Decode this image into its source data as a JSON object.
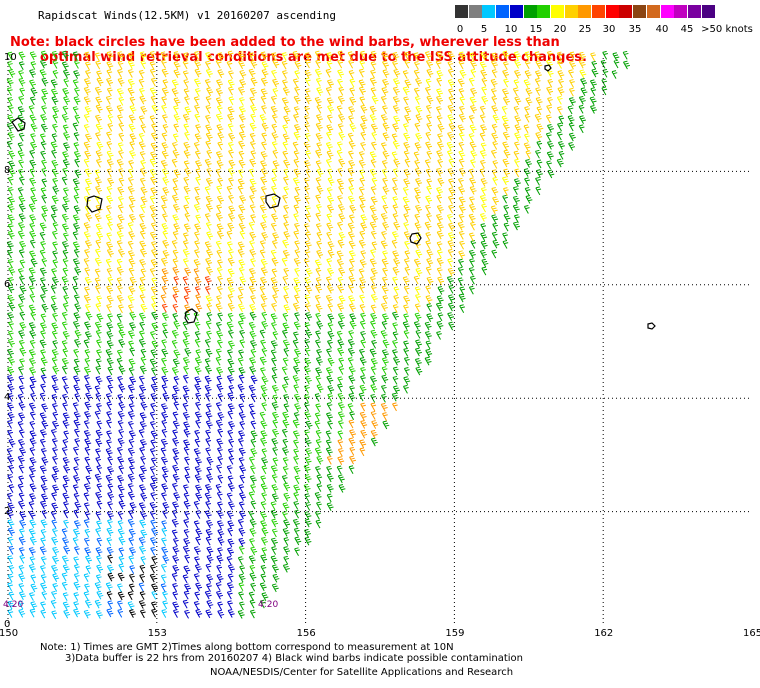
{
  "title": "Rapidscat Winds(12.5KM) v1 20160207 ascending",
  "note": {
    "line1": "Note: black circles have been added to the wind barbs, wherever less than",
    "line2": "optimal wind retrieval conditions are met due to the ISS attitude changes."
  },
  "legend": {
    "labels": [
      "0",
      "5",
      "10",
      "15",
      "20",
      "25",
      "30",
      "35",
      "40",
      "45",
      ">50 knots"
    ],
    "colors": [
      "#333333",
      "#7f7f7f",
      "#00c8ff",
      "#0064ff",
      "#0000c8",
      "#00a000",
      "#22d000",
      "#ffff00",
      "#ffd000",
      "#ff9900",
      "#ff4400",
      "#ff0000",
      "#cc0000",
      "#8b4513",
      "#d2691e",
      "#ff00ff",
      "#c000c0",
      "#7a00a0",
      "#4b0082"
    ]
  },
  "axes": {
    "x_ticks": [
      "150",
      "153",
      "156",
      "159",
      "162",
      "165"
    ],
    "y_ticks": [
      "10",
      "8",
      "6",
      "4",
      "2",
      "0"
    ]
  },
  "time_labels": [
    "4:20",
    "4:20"
  ],
  "footer": {
    "line1": "Note: 1) Times are GMT 2)Times along bottom correspond to measurement at 10N",
    "line2": "3)Data buffer is 22 hrs from 20160207 4) Black wind barbs indicate possible contamination",
    "line3": "NOAA/NESDIS/Center for Satellite Applications and Research"
  }
}
